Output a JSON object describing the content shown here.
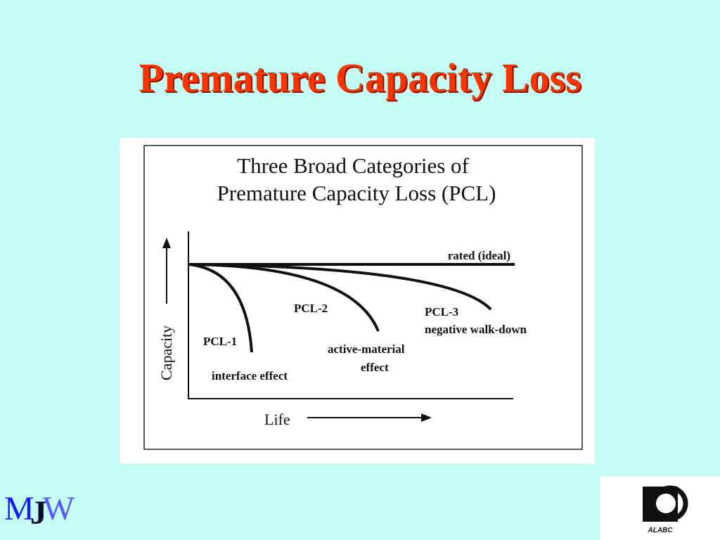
{
  "slide": {
    "title": "Premature Capacity Loss"
  },
  "figure": {
    "title_line1": "Three Broad Categories of",
    "title_line2": "Premature Capacity Loss (PCL)",
    "y_axis_label": "Capacity",
    "x_axis_label": "Life",
    "curves": {
      "rated": "rated (ideal)",
      "pcl1": "PCL-1",
      "pcl1_desc": "interface effect",
      "pcl2": "PCL-2",
      "pcl2_desc_line1": "active-material",
      "pcl2_desc_line2": "effect",
      "pcl3": "PCL-3",
      "pcl3_desc": "negative walk-down"
    }
  },
  "logos": {
    "mjw_m": "M",
    "mjw_j": "J",
    "mjw_w": "W",
    "alabc": "ALABC"
  },
  "colors": {
    "background": "#c4fbf4",
    "title": "#ff3300",
    "figure_bg": "#ffffff",
    "ink": "#111111"
  }
}
